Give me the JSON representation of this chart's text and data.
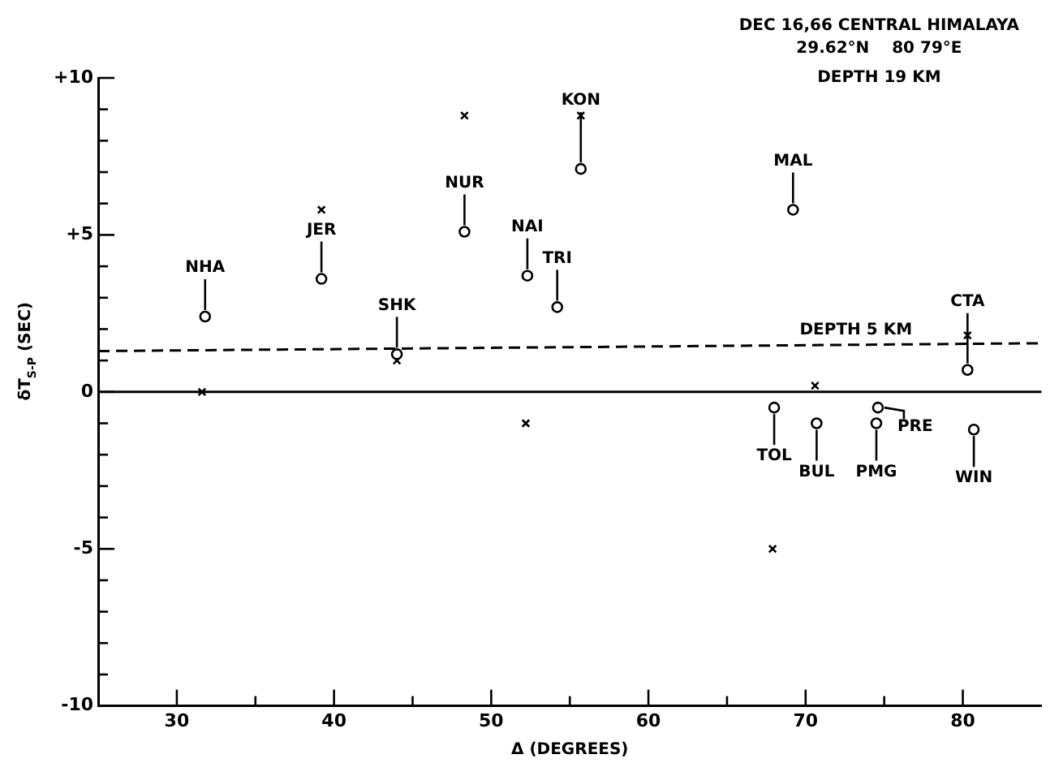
{
  "chart_data": {
    "type": "scatter",
    "title": "DEC 16,66 CENTRAL HIMALAYA",
    "subtitle": "29.62°N    80 79°E",
    "xlabel": "Δ (DEGREES)",
    "ylabel": "δT$_{S-P}$ (SEC)",
    "annotations": [
      "DEPTH 19 KM",
      {
        "text": "DEPTH 5 KM",
        "x": 73.2,
        "y": 1.5
      }
    ],
    "xlim": [
      25,
      85
    ],
    "xticks": [
      30,
      {
        "value": 35,
        "label": null
      },
      40,
      {
        "value": 45,
        "label": null
      },
      50,
      {
        "value": 55,
        "label": null
      },
      60,
      {
        "value": 65,
        "label": null
      },
      70,
      {
        "value": 75,
        "label": null
      },
      80
    ],
    "ylim": [
      -10,
      10
    ],
    "yticks": [
      {
        "value": -10,
        "label": "-10"
      },
      {
        "value": -9,
        "label": null
      },
      {
        "value": -8,
        "label": null
      },
      {
        "value": -7,
        "label": null
      },
      {
        "value": -6,
        "label": null
      },
      {
        "value": -5,
        "label": "-5"
      },
      {
        "value": -4,
        "label": null
      },
      {
        "value": -3,
        "label": null
      },
      {
        "value": -2,
        "label": null
      },
      {
        "value": -1,
        "label": null
      },
      0,
      {
        "value": 1,
        "label": null
      },
      {
        "value": 2,
        "label": null
      },
      {
        "value": 3,
        "label": null
      },
      {
        "value": 4,
        "label": null
      },
      {
        "value": 5,
        "label": "+5"
      },
      {
        "value": 6,
        "label": null
      },
      {
        "value": 7,
        "label": null
      },
      {
        "value": 8,
        "label": null
      },
      {
        "value": 9,
        "label": null
      },
      {
        "value": 10,
        "label": "+10"
      }
    ],
    "series": [
      {
        "type": "scatter",
        "marker": "circle",
        "color": "#000000",
        "x": [
          31.8,
          39.2,
          44.0,
          48.3,
          52.3,
          54.2,
          55.7,
          69.2,
          80.3,
          68.0,
          70.7,
          74.6,
          74.5,
          80.7
        ],
        "values": [
          2.4,
          3.6,
          1.2,
          5.1,
          3.7,
          2.7,
          7.1,
          5.8,
          0.7,
          -0.5,
          -1.0,
          -0.5,
          -1.0,
          -1.2
        ],
        "value_labels": [
          "NHA",
          "JER",
          "SHK",
          "NUR",
          "NAI",
          "TRI",
          "KON",
          "MAL",
          "CTA",
          "TOL",
          "BUL",
          "PRE",
          "PMG",
          "WIN"
        ]
      },
      {
        "type": "scatter",
        "marker": "cross",
        "color": "#000000",
        "x": [
          31.6,
          39.2,
          44.0,
          48.3,
          52.2,
          55.7,
          70.6,
          67.9,
          80.3
        ],
        "values": [
          0,
          5.8,
          1.0,
          8.8,
          -1.0,
          8.8,
          0.2,
          -5.0,
          1.8
        ]
      },
      {
        "type": "line",
        "marker": "none",
        "line_style": "dashed",
        "color": "#000000",
        "x": [
          25,
          85
        ],
        "values": [
          1.3,
          1.55
        ]
      }
    ],
    "ref_lines": [
      {
        "axis": "y",
        "value": 0,
        "color": "#000000"
      }
    ],
    "grid": false,
    "legend": false
  }
}
